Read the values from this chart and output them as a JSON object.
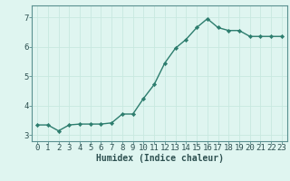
{
  "x": [
    0,
    1,
    2,
    3,
    4,
    5,
    6,
    7,
    8,
    9,
    10,
    11,
    12,
    13,
    14,
    15,
    16,
    17,
    18,
    19,
    20,
    21,
    22,
    23
  ],
  "y": [
    3.35,
    3.35,
    3.15,
    3.35,
    3.38,
    3.38,
    3.38,
    3.42,
    3.72,
    3.72,
    4.25,
    4.72,
    5.45,
    5.95,
    6.25,
    6.65,
    6.95,
    6.65,
    6.55,
    6.55,
    6.35,
    6.35,
    6.35,
    6.35
  ],
  "line_color": "#2d7d6e",
  "marker": "D",
  "marker_size": 2.2,
  "line_width": 1.0,
  "bg_color": "#dff5f0",
  "grid_color": "#c8e8e0",
  "xlabel": "Humidex (Indice chaleur)",
  "xlabel_fontsize": 7,
  "tick_fontsize": 6.5,
  "ylim": [
    2.8,
    7.4
  ],
  "yticks": [
    3,
    4,
    5,
    6,
    7
  ],
  "xlim": [
    -0.5,
    23.5
  ],
  "xticks": [
    0,
    1,
    2,
    3,
    4,
    5,
    6,
    7,
    8,
    9,
    10,
    11,
    12,
    13,
    14,
    15,
    16,
    17,
    18,
    19,
    20,
    21,
    22,
    23
  ],
  "spine_color": "#5a9090",
  "tick_color": "#2d5050"
}
